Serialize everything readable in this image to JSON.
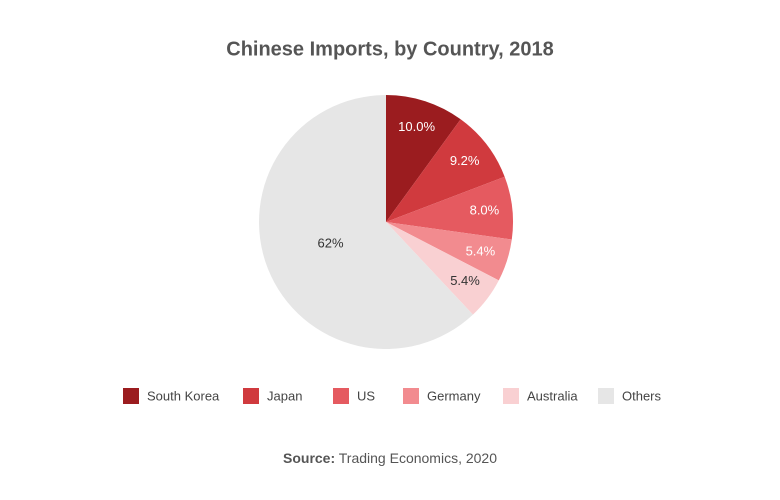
{
  "chart_data": {
    "type": "pie",
    "title": "Chinese Imports, by Country, 2018",
    "categories": [
      "South Korea",
      "Japan",
      "US",
      "Germany",
      "Australia",
      "Others"
    ],
    "values": [
      10.0,
      9.2,
      8.0,
      5.4,
      5.4,
      62
    ],
    "value_labels": [
      "10.0%",
      "9.2%",
      "8.0%",
      "5.4%",
      "5.4%",
      "62%"
    ],
    "colors": [
      "#9b1c1f",
      "#d03a3e",
      "#e55a60",
      "#f28b8f",
      "#f9d0d2",
      "#e6e6e6"
    ],
    "source_label": "Source:",
    "source": "Trading Economics, 2020"
  }
}
